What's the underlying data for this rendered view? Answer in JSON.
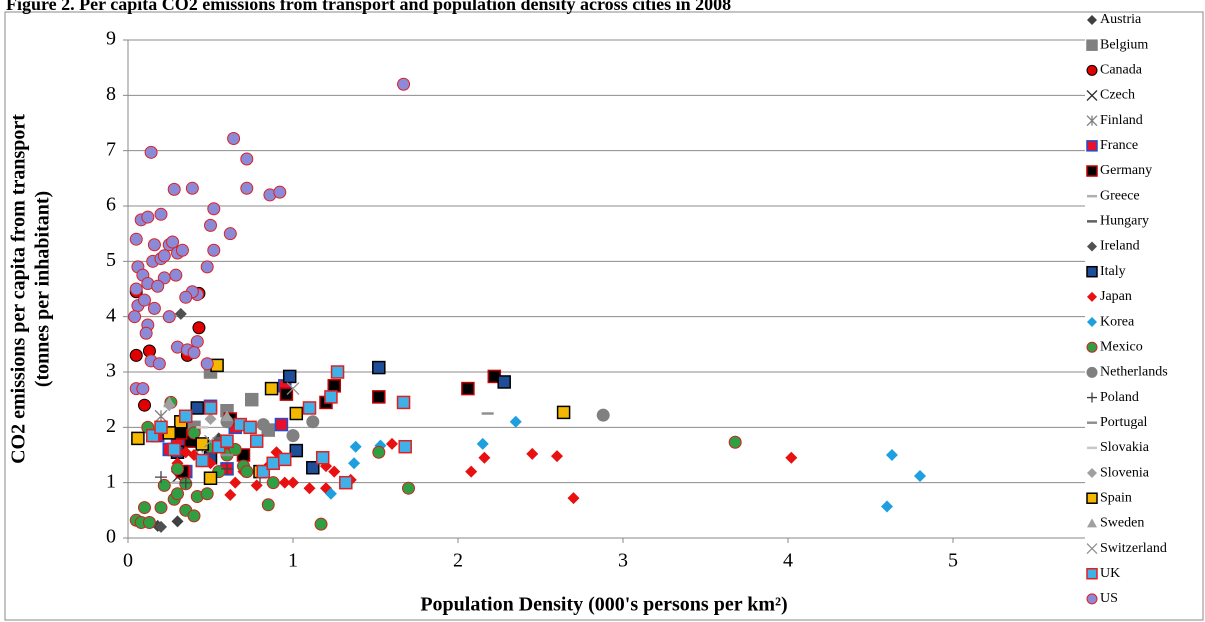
{
  "chart_data": {
    "type": "scatter",
    "title": "Figure 2. Per capita CO2 emissions from transport and population density across cities in 2008",
    "y_label": [
      "CO2 emissions per capita from transport",
      "(tonnes per inhabitant)"
    ],
    "x_label": "Population Density (000's persons per km²)",
    "xlim": [
      0,
      5.8
    ],
    "ylim": [
      0,
      9
    ],
    "xticks": [
      0,
      1,
      2,
      3,
      4,
      5
    ],
    "yticks": [
      0,
      1,
      2,
      3,
      4,
      5,
      6,
      7,
      8,
      9
    ],
    "grid": true,
    "legend": "right",
    "series": [
      {
        "name": "Austria",
        "marker": "diamond",
        "color": "#404040",
        "edge": "#404040",
        "x": [
          0.18,
          0.3,
          0.55
        ],
        "values": [
          0.22,
          0.3,
          1.8
        ]
      },
      {
        "name": "Belgium",
        "marker": "square",
        "color": "#808080",
        "edge": "#808080",
        "x": [
          0.5,
          0.6,
          0.75,
          0.85,
          0.4
        ],
        "values": [
          3.0,
          2.3,
          2.5,
          1.95,
          2.0
        ]
      },
      {
        "name": "Canada",
        "marker": "circle",
        "color": "#e00000",
        "edge": "#000000",
        "x": [
          0.05,
          0.05,
          0.1,
          0.13,
          0.36,
          0.43,
          0.43
        ],
        "values": [
          4.45,
          3.3,
          2.4,
          3.38,
          3.3,
          4.42,
          3.8
        ]
      },
      {
        "name": "Czech",
        "marker": "x",
        "color": "#303030",
        "edge": "#303030",
        "x": [
          0.3,
          0.45
        ],
        "values": [
          1.1,
          1.7
        ]
      },
      {
        "name": "Finland",
        "marker": "asterisk",
        "color": "#808080",
        "edge": "#808080",
        "x": [
          0.2,
          0.45
        ],
        "values": [
          2.2,
          1.65
        ]
      },
      {
        "name": "France",
        "marker": "square",
        "color": "#e8102a",
        "edge": "#1f4fd0",
        "x": [
          0.18,
          0.25,
          0.3,
          0.5,
          0.58,
          0.6,
          0.65,
          0.93,
          0.95,
          0.35
        ],
        "values": [
          1.85,
          1.6,
          1.7,
          2.38,
          1.7,
          1.25,
          2.0,
          2.05,
          2.75,
          1.2
        ]
      },
      {
        "name": "Germany",
        "marker": "square",
        "color": "#000000",
        "edge": "#c00000",
        "x": [
          0.33,
          0.38,
          0.62,
          0.7,
          0.96,
          1.2,
          1.25,
          1.52,
          2.06,
          2.22,
          0.32
        ],
        "values": [
          1.2,
          1.75,
          2.15,
          1.5,
          2.6,
          2.45,
          2.75,
          2.55,
          2.7,
          2.92,
          1.9
        ]
      },
      {
        "name": "Greece",
        "marker": "dash",
        "color": "#b0b0b0",
        "edge": "#b0b0b0",
        "x": [
          0.9,
          0.3
        ],
        "values": [
          1.45,
          1.0
        ]
      },
      {
        "name": "Hungary",
        "marker": "dash",
        "color": "#606060",
        "edge": "#606060",
        "x": [
          0.55
        ],
        "values": [
          1.8
        ]
      },
      {
        "name": "Ireland",
        "marker": "diamond",
        "color": "#505050",
        "edge": "#505050",
        "x": [
          0.32,
          0.2
        ],
        "values": [
          4.05,
          0.2
        ]
      },
      {
        "name": "Italy",
        "marker": "square",
        "color": "#1f4e99",
        "edge": "#000000",
        "x": [
          0.42,
          0.98,
          1.02,
          1.12,
          1.52,
          2.28,
          0.3,
          0.5
        ],
        "values": [
          2.35,
          2.92,
          1.58,
          1.27,
          3.08,
          2.82,
          1.55,
          1.45
        ]
      },
      {
        "name": "Japan",
        "marker": "diamond",
        "color": "#e81010",
        "edge": "#e81010",
        "x": [
          2.08,
          2.16,
          2.45,
          2.6,
          2.7,
          4.02,
          1.6,
          1.35,
          1.2,
          1.1,
          1.0,
          0.95,
          0.85,
          0.78,
          0.7,
          0.65,
          0.62,
          0.55,
          0.5,
          0.45,
          0.4,
          0.35,
          0.3,
          0.9,
          1.2,
          1.25
        ],
        "values": [
          1.2,
          1.45,
          1.52,
          1.48,
          0.72,
          1.45,
          1.7,
          1.05,
          0.9,
          0.9,
          1.0,
          1.0,
          1.3,
          0.95,
          1.2,
          1.0,
          0.78,
          1.2,
          1.35,
          1.7,
          1.5,
          1.55,
          1.35,
          1.55,
          1.3,
          1.2
        ]
      },
      {
        "name": "Korea",
        "marker": "diamond",
        "color": "#1ea0e0",
        "edge": "#1ea0e0",
        "x": [
          1.23,
          1.37,
          1.38,
          1.53,
          2.15,
          2.35,
          4.6,
          4.63,
          4.8
        ],
        "values": [
          0.8,
          1.35,
          1.65,
          1.67,
          1.7,
          2.1,
          0.57,
          1.5,
          1.12
        ]
      },
      {
        "name": "Mexico",
        "marker": "circle",
        "color": "#2ea043",
        "edge": "#d02020",
        "x": [
          0.05,
          0.08,
          0.1,
          0.13,
          0.2,
          0.22,
          0.28,
          0.3,
          0.35,
          0.35,
          0.4,
          0.42,
          0.48,
          0.55,
          0.6,
          0.65,
          0.7,
          0.72,
          0.85,
          0.88,
          1.17,
          1.52,
          1.7,
          3.68,
          0.12,
          0.26,
          0.4,
          0.5,
          0.3
        ],
        "values": [
          0.32,
          0.28,
          0.55,
          0.28,
          0.55,
          0.95,
          0.7,
          0.8,
          0.98,
          0.5,
          0.4,
          0.75,
          0.8,
          1.2,
          1.5,
          1.6,
          1.3,
          1.2,
          0.6,
          1.0,
          0.25,
          1.55,
          0.9,
          1.73,
          2.0,
          2.45,
          1.9,
          1.65,
          1.25
        ]
      },
      {
        "name": "Netherlands",
        "marker": "circle",
        "color": "#808080",
        "edge": "#808080",
        "x": [
          0.6,
          0.82,
          1.0,
          1.12,
          2.88
        ],
        "values": [
          2.1,
          2.05,
          1.85,
          2.1,
          2.22
        ]
      },
      {
        "name": "Poland",
        "marker": "plus",
        "color": "#404040",
        "edge": "#404040",
        "x": [
          0.2,
          0.35,
          0.6,
          0.8
        ],
        "values": [
          1.1,
          1.0,
          1.25,
          1.1
        ]
      },
      {
        "name": "Portugal",
        "marker": "dash",
        "color": "#909090",
        "edge": "#909090",
        "x": [
          2.18,
          0.6
        ],
        "values": [
          2.25,
          1.5
        ]
      },
      {
        "name": "Slovakia",
        "marker": "dash",
        "color": "#c8c8c8",
        "edge": "#c8c8c8",
        "x": [
          0.45
        ],
        "values": [
          2.0
        ]
      },
      {
        "name": "Slovenia",
        "marker": "diamond",
        "color": "#a0a0a0",
        "edge": "#a0a0a0",
        "x": [
          0.25,
          0.5
        ],
        "values": [
          2.4,
          2.15
        ]
      },
      {
        "name": "Spain",
        "marker": "square",
        "color": "#f5b800",
        "edge": "#000000",
        "x": [
          0.06,
          0.32,
          0.45,
          0.5,
          0.54,
          0.8,
          0.87,
          1.02,
          2.64,
          0.25
        ],
        "values": [
          1.8,
          2.1,
          1.7,
          1.08,
          3.12,
          1.2,
          2.7,
          2.25,
          2.27,
          1.9
        ]
      },
      {
        "name": "Sweden",
        "marker": "triangle",
        "color": "#a0a0a0",
        "edge": "#a0a0a0",
        "x": [
          0.25,
          0.6
        ],
        "values": [
          2.45,
          2.2
        ]
      },
      {
        "name": "Switzerland",
        "marker": "x",
        "color": "#909090",
        "edge": "#909090",
        "x": [
          1.0,
          0.5
        ],
        "values": [
          2.7,
          1.75
        ]
      },
      {
        "name": "UK",
        "marker": "square",
        "color": "#3fb0e8",
        "edge": "#e02020",
        "x": [
          0.15,
          0.2,
          0.28,
          0.35,
          0.45,
          0.5,
          0.55,
          0.6,
          0.68,
          0.74,
          0.78,
          0.82,
          0.88,
          0.95,
          1.1,
          1.18,
          1.23,
          1.27,
          1.32,
          1.67,
          1.68
        ],
        "values": [
          1.85,
          2.0,
          1.6,
          2.2,
          1.4,
          2.35,
          1.65,
          1.75,
          2.05,
          2.0,
          1.75,
          1.2,
          1.35,
          1.42,
          2.35,
          1.45,
          2.55,
          3.0,
          1.0,
          2.45,
          1.65
        ]
      },
      {
        "name": "US",
        "marker": "circle",
        "color": "#8a8ad8",
        "edge": "#e02020",
        "x": [
          0.05,
          0.06,
          0.05,
          0.06,
          0.04,
          0.08,
          0.12,
          0.09,
          0.1,
          0.12,
          0.15,
          0.16,
          0.2,
          0.2,
          0.22,
          0.25,
          0.27,
          0.29,
          0.3,
          0.33,
          0.25,
          0.14,
          0.28,
          0.39,
          0.42,
          0.39,
          0.42,
          0.48,
          0.5,
          0.52,
          0.52,
          0.62,
          0.64,
          0.72,
          0.72,
          0.86,
          0.92,
          1.67,
          0.05,
          0.09,
          0.12,
          0.14,
          0.19,
          0.11,
          0.3,
          0.36,
          0.48,
          0.4,
          0.16,
          0.18,
          0.22,
          0.35
        ],
        "values": [
          5.4,
          4.9,
          4.5,
          4.2,
          4.0,
          5.75,
          5.8,
          4.75,
          4.3,
          4.6,
          5.0,
          5.3,
          5.85,
          5.05,
          4.7,
          5.3,
          5.35,
          4.75,
          5.15,
          5.2,
          4.0,
          6.97,
          6.3,
          6.32,
          4.4,
          4.45,
          3.55,
          4.9,
          5.65,
          5.95,
          5.2,
          5.5,
          7.22,
          6.85,
          6.32,
          6.2,
          6.25,
          8.2,
          2.7,
          2.7,
          3.85,
          3.2,
          3.15,
          3.7,
          3.45,
          3.4,
          3.15,
          3.35,
          4.15,
          4.55,
          5.1,
          4.35
        ]
      }
    ]
  }
}
